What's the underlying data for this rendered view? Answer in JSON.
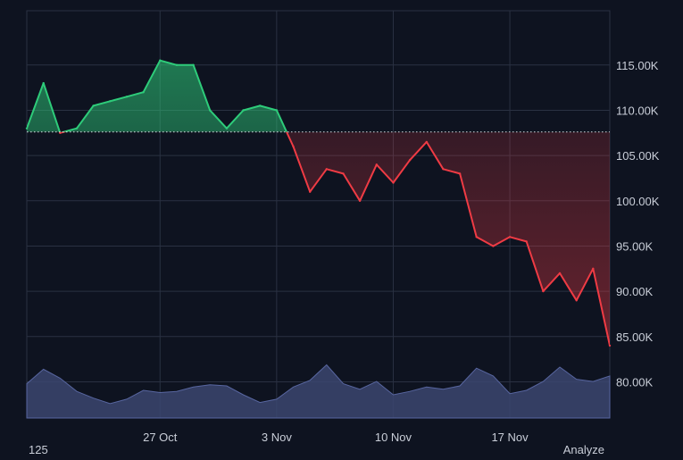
{
  "colors": {
    "background": "#0e1320",
    "grid": "#2a3142",
    "up": "#2ecc7a",
    "down": "#ef3b44",
    "baseline": "#d7dbe3",
    "volume": "#3b4670"
  },
  "corner_left_label": "125",
  "corner_right_label": "Analyze",
  "chart_data": {
    "type": "line",
    "baseline_value": 107600,
    "ylim": [
      76000,
      121000
    ],
    "y_ticks": [
      80000,
      85000,
      90000,
      95000,
      100000,
      105000,
      110000,
      115000
    ],
    "y_tick_labels": [
      "80.00K",
      "85.00K",
      "90.00K",
      "95.00K",
      "100.00K",
      "105.00K",
      "110.00K",
      "115.00K"
    ],
    "x_range": [
      "2025-10-19",
      "2025-11-23"
    ],
    "x_ticks": [
      "2025-10-27",
      "2025-11-03",
      "2025-11-10",
      "2025-11-17"
    ],
    "x_tick_labels": [
      "27 Oct",
      "3 Nov",
      "10 Nov",
      "17 Nov"
    ],
    "series": [
      {
        "x": [
          "2025-10-19",
          "2025-10-20",
          "2025-10-21",
          "2025-10-22",
          "2025-10-23",
          "2025-10-24",
          "2025-10-25",
          "2025-10-26",
          "2025-10-27",
          "2025-10-28",
          "2025-10-29",
          "2025-10-30",
          "2025-10-31",
          "2025-11-01",
          "2025-11-02",
          "2025-11-03",
          "2025-11-04",
          "2025-11-05",
          "2025-11-06",
          "2025-11-07",
          "2025-11-08",
          "2025-11-09",
          "2025-11-10",
          "2025-11-11",
          "2025-11-12",
          "2025-11-13",
          "2025-11-14",
          "2025-11-15",
          "2025-11-16",
          "2025-11-17",
          "2025-11-18",
          "2025-11-19",
          "2025-11-20",
          "2025-11-21",
          "2025-11-22",
          "2025-11-23"
        ],
        "y": [
          108000,
          113000,
          107500,
          108000,
          110500,
          111000,
          111500,
          112000,
          115500,
          115000,
          115000,
          110000,
          108000,
          110000,
          110500,
          110000,
          106000,
          101000,
          103500,
          103000,
          100000,
          104000,
          102000,
          104500,
          106500,
          103500,
          103000,
          96000,
          95000,
          96000,
          95500,
          90000,
          92000,
          89000,
          92500,
          84000
        ]
      }
    ],
    "volume": {
      "x": [
        "2025-10-19",
        "2025-10-20",
        "2025-10-21",
        "2025-10-22",
        "2025-10-23",
        "2025-10-24",
        "2025-10-25",
        "2025-10-26",
        "2025-10-27",
        "2025-10-28",
        "2025-10-29",
        "2025-10-30",
        "2025-10-31",
        "2025-11-01",
        "2025-11-02",
        "2025-11-03",
        "2025-11-04",
        "2025-11-05",
        "2025-11-06",
        "2025-11-07",
        "2025-11-08",
        "2025-11-09",
        "2025-11-10",
        "2025-11-11",
        "2025-11-12",
        "2025-11-13",
        "2025-11-14",
        "2025-11-15",
        "2025-11-16",
        "2025-11-17",
        "2025-11-18",
        "2025-11-19",
        "2025-11-20",
        "2025-11-21",
        "2025-11-22",
        "2025-11-23"
      ],
      "values": [
        0.62,
        0.88,
        0.72,
        0.48,
        0.36,
        0.26,
        0.34,
        0.5,
        0.46,
        0.48,
        0.56,
        0.6,
        0.58,
        0.42,
        0.28,
        0.34,
        0.56,
        0.68,
        0.96,
        0.62,
        0.52,
        0.66,
        0.42,
        0.48,
        0.56,
        0.52,
        0.58,
        0.9,
        0.76,
        0.44,
        0.5,
        0.66,
        0.92,
        0.7,
        0.66,
        0.76
      ]
    }
  }
}
